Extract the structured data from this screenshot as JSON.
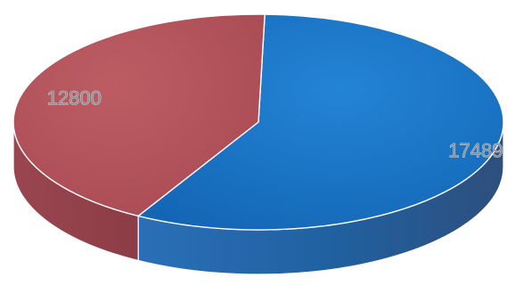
{
  "chart_data": {
    "type": "pie",
    "title": "",
    "legend": "none",
    "three_d": true,
    "slices": [
      {
        "value": 17489,
        "label": "17489",
        "color": "#1f72c3"
      },
      {
        "value": 12800,
        "label": "12800",
        "color": "#b0505a"
      }
    ]
  }
}
